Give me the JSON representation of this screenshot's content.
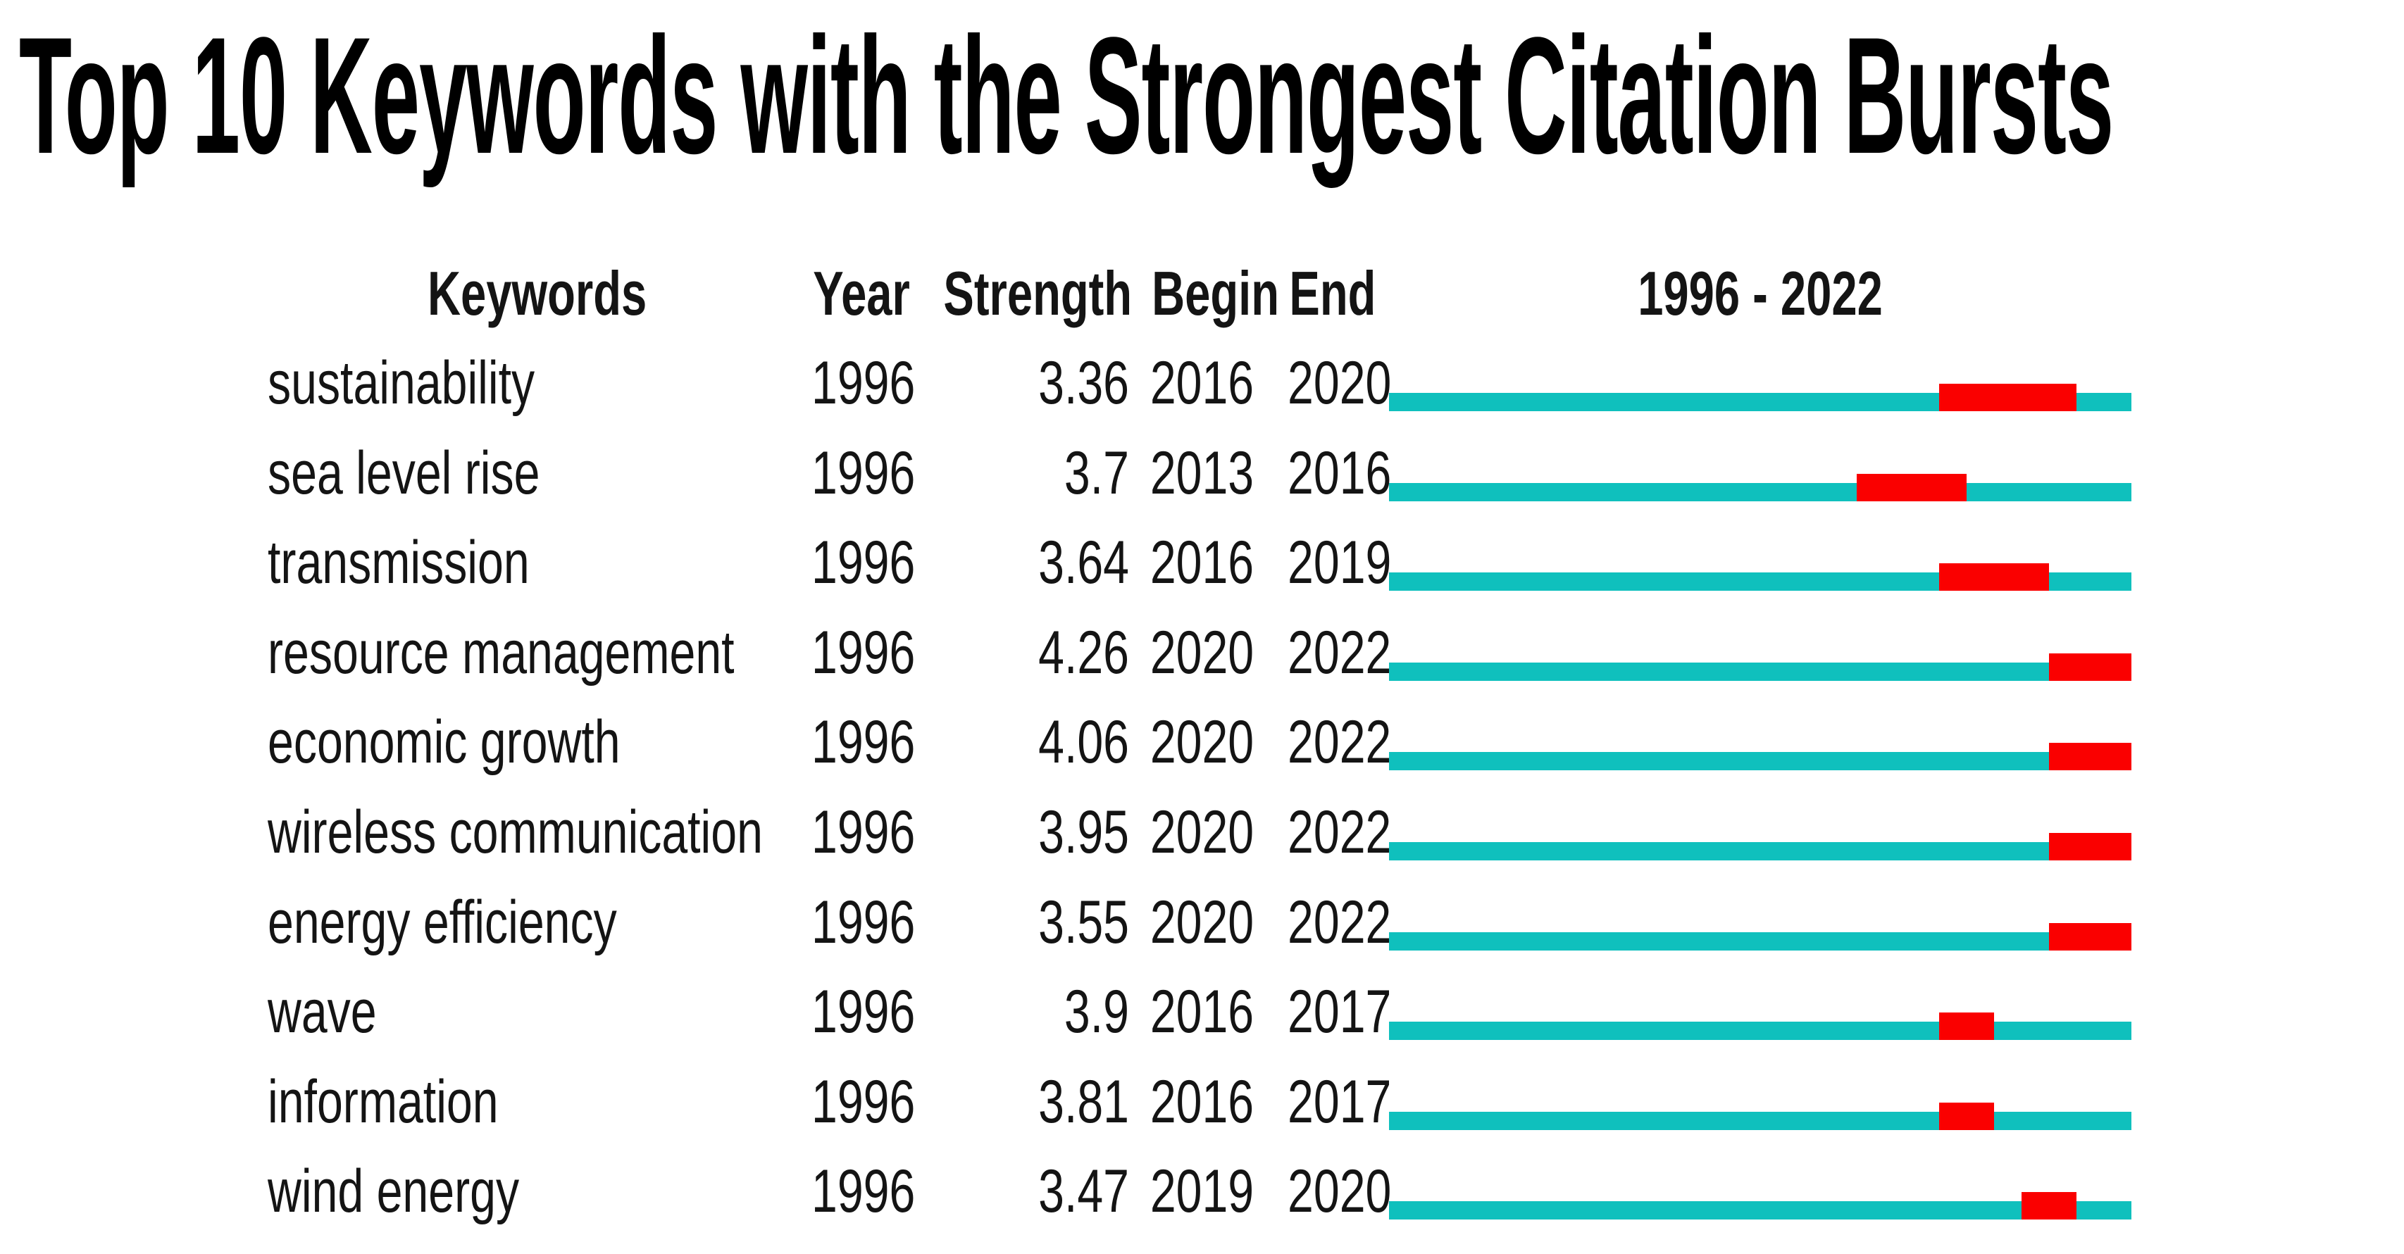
{
  "title": "Top 10 Keywords with the Strongest Citation Bursts",
  "table": {
    "headers": {
      "keywords": "Keywords",
      "year": "Year",
      "strength": "Strength",
      "begin": "Begin",
      "end": "End",
      "timeline": "1996 - 2022"
    }
  },
  "chart_data": {
    "type": "table",
    "title": "Top 10 Keywords with the Strongest Citation Bursts",
    "columns": [
      "Keywords",
      "Year",
      "Strength",
      "Begin",
      "End",
      "1996 - 2022"
    ],
    "timeline": {
      "start": 1996,
      "end": 2022,
      "label": "1996 - 2022"
    },
    "rows": [
      {
        "keyword": "sustainability",
        "year": 1996,
        "strength": 3.36,
        "begin": 2016,
        "end": 2020
      },
      {
        "keyword": "sea level rise",
        "year": 1996,
        "strength": 3.7,
        "begin": 2013,
        "end": 2016
      },
      {
        "keyword": "transmission",
        "year": 1996,
        "strength": 3.64,
        "begin": 2016,
        "end": 2019
      },
      {
        "keyword": "resource management",
        "year": 1996,
        "strength": 4.26,
        "begin": 2020,
        "end": 2022
      },
      {
        "keyword": "economic growth",
        "year": 1996,
        "strength": 4.06,
        "begin": 2020,
        "end": 2022
      },
      {
        "keyword": "wireless communication",
        "year": 1996,
        "strength": 3.95,
        "begin": 2020,
        "end": 2022
      },
      {
        "keyword": "energy efficiency",
        "year": 1996,
        "strength": 3.55,
        "begin": 2020,
        "end": 2022
      },
      {
        "keyword": "wave",
        "year": 1996,
        "strength": 3.9,
        "begin": 2016,
        "end": 2017
      },
      {
        "keyword": "information",
        "year": 1996,
        "strength": 3.81,
        "begin": 2016,
        "end": 2017
      },
      {
        "keyword": "wind energy",
        "year": 1996,
        "strength": 3.47,
        "begin": 2019,
        "end": 2020
      }
    ],
    "colors": {
      "timeline_bar": "#0fc0bd",
      "burst_bar": "#fa0000",
      "text": "#141414",
      "title_text": "#000000"
    }
  }
}
